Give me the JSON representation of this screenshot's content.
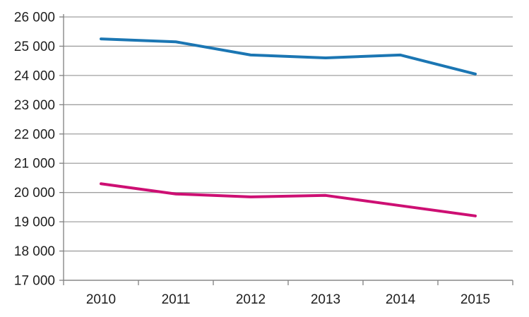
{
  "chart_data": {
    "type": "line",
    "title": "",
    "xlabel": "",
    "ylabel": "",
    "categories": [
      "2010",
      "2011",
      "2012",
      "2013",
      "2014",
      "2015"
    ],
    "series": [
      {
        "name": "upper-blue-series",
        "color": "#1B76B3",
        "values": [
          25250,
          25150,
          24700,
          24600,
          24700,
          24050
        ]
      },
      {
        "name": "lower-pink-series",
        "color": "#CD0F73",
        "values": [
          20300,
          19950,
          19850,
          19900,
          19550,
          19200
        ]
      }
    ],
    "ylim": [
      17000,
      26000
    ],
    "ytick_step": 1000,
    "yticks": [
      26000,
      25000,
      24000,
      23000,
      22000,
      21000,
      20000,
      19000,
      18000,
      17000
    ],
    "ytick_labels": [
      "26 000",
      "25 000",
      "24 000",
      "23 000",
      "22 000",
      "21 000",
      "20 000",
      "19 000",
      "18 000",
      "17 000"
    ],
    "grid": true,
    "legend_position": "none",
    "line_width": 4
  },
  "colors": {
    "background": "#FFFFFF",
    "gridline": "#A0A0A0",
    "axis": "#808080",
    "tick_text": "#1E1E1E"
  }
}
